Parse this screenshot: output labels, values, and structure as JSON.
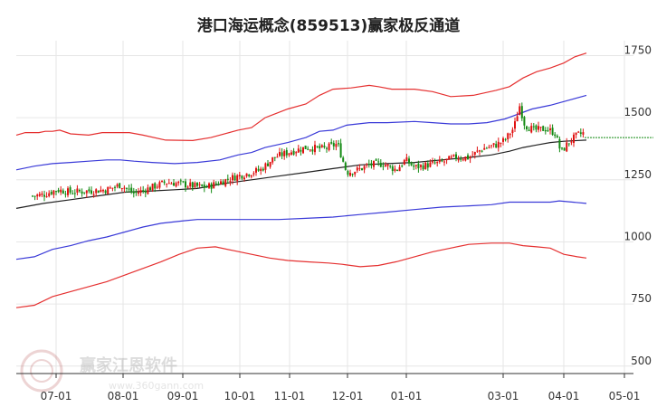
{
  "chart_data": {
    "type": "candlestick-channel",
    "title": "港口海运概念(859513)赢家极反通道",
    "y_ticks": [
      500,
      750,
      1000,
      1250,
      1500,
      1750
    ],
    "ylim": [
      470,
      1810
    ],
    "x_ticks": [
      "07-01",
      "08-01",
      "09-01",
      "10-01",
      "11-01",
      "12-01",
      "01-01",
      "03-01",
      "04-01",
      "05-01"
    ],
    "colors": {
      "up": "#e01010",
      "down": "#138a13",
      "upper_band": "#e53030",
      "mid_band": "#3a3ad8",
      "center": "#222222",
      "last_price_line": "#138a13",
      "grid": "#e6e6e6"
    },
    "upper_band": [
      [
        0,
        1430
      ],
      [
        10,
        1440
      ],
      [
        25,
        1440
      ],
      [
        32,
        1445
      ],
      [
        40,
        1445
      ],
      [
        48,
        1450
      ],
      [
        60,
        1435
      ],
      [
        80,
        1430
      ],
      [
        95,
        1440
      ],
      [
        110,
        1440
      ],
      [
        125,
        1440
      ],
      [
        140,
        1430
      ],
      [
        165,
        1410
      ],
      [
        195,
        1408
      ],
      [
        215,
        1420
      ],
      [
        245,
        1450
      ],
      [
        260,
        1460
      ],
      [
        275,
        1500
      ],
      [
        300,
        1535
      ],
      [
        320,
        1555
      ],
      [
        335,
        1590
      ],
      [
        350,
        1615
      ],
      [
        370,
        1620
      ],
      [
        390,
        1630
      ],
      [
        400,
        1625
      ],
      [
        415,
        1615
      ],
      [
        440,
        1615
      ],
      [
        460,
        1605
      ],
      [
        480,
        1585
      ],
      [
        505,
        1590
      ],
      [
        530,
        1610
      ],
      [
        545,
        1625
      ],
      [
        560,
        1660
      ],
      [
        575,
        1685
      ],
      [
        590,
        1700
      ],
      [
        605,
        1720
      ],
      [
        617,
        1745
      ],
      [
        630,
        1760
      ]
    ],
    "mid_band": [
      [
        0,
        1290
      ],
      [
        20,
        1305
      ],
      [
        40,
        1315
      ],
      [
        60,
        1320
      ],
      [
        80,
        1325
      ],
      [
        100,
        1330
      ],
      [
        115,
        1330
      ],
      [
        130,
        1325
      ],
      [
        150,
        1320
      ],
      [
        175,
        1315
      ],
      [
        200,
        1320
      ],
      [
        225,
        1330
      ],
      [
        245,
        1350
      ],
      [
        260,
        1360
      ],
      [
        275,
        1380
      ],
      [
        300,
        1400
      ],
      [
        320,
        1420
      ],
      [
        335,
        1445
      ],
      [
        350,
        1450
      ],
      [
        365,
        1470
      ],
      [
        390,
        1480
      ],
      [
        410,
        1480
      ],
      [
        440,
        1485
      ],
      [
        460,
        1480
      ],
      [
        480,
        1475
      ],
      [
        500,
        1475
      ],
      [
        520,
        1480
      ],
      [
        540,
        1495
      ],
      [
        555,
        1515
      ],
      [
        570,
        1535
      ],
      [
        590,
        1550
      ],
      [
        610,
        1570
      ],
      [
        630,
        1590
      ]
    ],
    "center_line": [
      [
        0,
        1135
      ],
      [
        30,
        1155
      ],
      [
        60,
        1170
      ],
      [
        90,
        1185
      ],
      [
        120,
        1200
      ],
      [
        150,
        1205
      ],
      [
        175,
        1210
      ],
      [
        200,
        1215
      ],
      [
        230,
        1235
      ],
      [
        260,
        1250
      ],
      [
        290,
        1265
      ],
      [
        320,
        1280
      ],
      [
        350,
        1295
      ],
      [
        380,
        1310
      ],
      [
        410,
        1315
      ],
      [
        440,
        1320
      ],
      [
        470,
        1330
      ],
      [
        500,
        1340
      ],
      [
        525,
        1350
      ],
      [
        545,
        1365
      ],
      [
        560,
        1380
      ],
      [
        575,
        1390
      ],
      [
        590,
        1400
      ],
      [
        605,
        1405
      ],
      [
        630,
        1410
      ]
    ],
    "lower_mid_band": [
      [
        0,
        930
      ],
      [
        20,
        940
      ],
      [
        40,
        970
      ],
      [
        60,
        985
      ],
      [
        80,
        1005
      ],
      [
        100,
        1020
      ],
      [
        120,
        1040
      ],
      [
        140,
        1060
      ],
      [
        160,
        1075
      ],
      [
        185,
        1085
      ],
      [
        200,
        1090
      ],
      [
        230,
        1090
      ],
      [
        260,
        1090
      ],
      [
        290,
        1090
      ],
      [
        320,
        1095
      ],
      [
        350,
        1100
      ],
      [
        380,
        1110
      ],
      [
        410,
        1120
      ],
      [
        440,
        1130
      ],
      [
        470,
        1140
      ],
      [
        500,
        1145
      ],
      [
        525,
        1150
      ],
      [
        545,
        1160
      ],
      [
        570,
        1160
      ],
      [
        590,
        1160
      ],
      [
        600,
        1165
      ],
      [
        615,
        1160
      ],
      [
        630,
        1155
      ]
    ],
    "lower_band": [
      [
        0,
        735
      ],
      [
        20,
        745
      ],
      [
        40,
        780
      ],
      [
        60,
        800
      ],
      [
        80,
        820
      ],
      [
        100,
        840
      ],
      [
        115,
        860
      ],
      [
        130,
        880
      ],
      [
        145,
        900
      ],
      [
        160,
        920
      ],
      [
        180,
        950
      ],
      [
        200,
        975
      ],
      [
        220,
        980
      ],
      [
        240,
        965
      ],
      [
        260,
        950
      ],
      [
        280,
        935
      ],
      [
        300,
        925
      ],
      [
        320,
        920
      ],
      [
        345,
        915
      ],
      [
        360,
        910
      ],
      [
        380,
        900
      ],
      [
        400,
        905
      ],
      [
        420,
        920
      ],
      [
        440,
        940
      ],
      [
        460,
        960
      ],
      [
        480,
        975
      ],
      [
        500,
        990
      ],
      [
        525,
        995
      ],
      [
        545,
        995
      ],
      [
        560,
        985
      ],
      [
        575,
        980
      ],
      [
        590,
        975
      ],
      [
        605,
        950
      ],
      [
        620,
        940
      ],
      [
        630,
        935
      ]
    ],
    "price": [
      [
        18,
        1185
      ],
      [
        30,
        1190
      ],
      [
        45,
        1210
      ],
      [
        60,
        1200
      ],
      [
        80,
        1205
      ],
      [
        100,
        1210
      ],
      [
        115,
        1230
      ],
      [
        130,
        1195
      ],
      [
        150,
        1220
      ],
      [
        165,
        1240
      ],
      [
        180,
        1235
      ],
      [
        195,
        1225
      ],
      [
        210,
        1220
      ],
      [
        225,
        1240
      ],
      [
        240,
        1260
      ],
      [
        255,
        1275
      ],
      [
        270,
        1290
      ],
      [
        285,
        1340
      ],
      [
        300,
        1360
      ],
      [
        320,
        1380
      ],
      [
        340,
        1375
      ],
      [
        355,
        1395
      ],
      [
        365,
        1280
      ],
      [
        378,
        1290
      ],
      [
        390,
        1310
      ],
      [
        405,
        1315
      ],
      [
        420,
        1290
      ],
      [
        430,
        1330
      ],
      [
        440,
        1300
      ],
      [
        455,
        1310
      ],
      [
        470,
        1320
      ],
      [
        485,
        1340
      ],
      [
        500,
        1340
      ],
      [
        515,
        1375
      ],
      [
        530,
        1390
      ],
      [
        540,
        1410
      ],
      [
        550,
        1460
      ],
      [
        556,
        1550
      ],
      [
        562,
        1470
      ],
      [
        572,
        1450
      ],
      [
        585,
        1455
      ],
      [
        595,
        1440
      ],
      [
        602,
        1360
      ],
      [
        610,
        1400
      ],
      [
        620,
        1430
      ],
      [
        628,
        1440
      ]
    ],
    "last_price": 1420
  }
}
